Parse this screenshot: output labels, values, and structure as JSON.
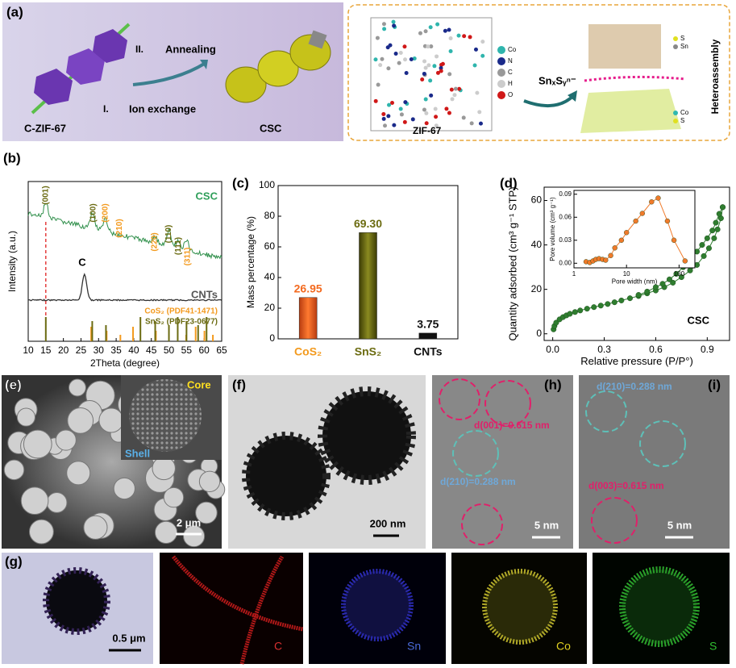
{
  "figure": {
    "a": {
      "label": "(a)",
      "step2": "II.",
      "anneal": "Annealing",
      "step1": "I.",
      "ion": "Ion exchange",
      "left": "C-ZIF-67",
      "right": "CSC",
      "zif": "ZIF-67",
      "atoms": [
        "Co",
        "N",
        "C",
        "H",
        "O"
      ],
      "reagent": "SnₓSᵧⁿ⁻",
      "side": "Heteroassembly",
      "top_atoms": [
        "S",
        "Sn"
      ],
      "bottom_atoms": [
        "Co",
        "S"
      ]
    },
    "e": {
      "label": "(e)",
      "core": "Core",
      "shell": "Shell",
      "scale": "2 μm"
    },
    "f": {
      "label": "(f)",
      "scale": "200 nm"
    },
    "h": {
      "label": "(h)",
      "d1": "d(001)=0.615 nm",
      "d2": "d(210)=0.288 nm",
      "scale": "5 nm"
    },
    "i": {
      "label": "(i)",
      "d1": "d(210)=0.288 nm",
      "d2": "d(003)=0.615 nm",
      "scale": "5 nm"
    },
    "g": {
      "label": "(g)",
      "scale": "0.5 μm",
      "maps": [
        "C",
        "Sn",
        "Co",
        "S"
      ]
    }
  },
  "chart_data": [
    {
      "type": "xrd",
      "label": "(b)",
      "xlabel": "2Theta (degree)",
      "ylabel": "Intensity (a.u.)",
      "xlim": [
        10,
        65
      ],
      "xticks": [
        10,
        15,
        20,
        25,
        30,
        35,
        40,
        45,
        50,
        55,
        60,
        65
      ],
      "curves": [
        "CSC",
        "C",
        "CNTs"
      ],
      "peaks": [
        "(001)",
        "(100)",
        "(200)",
        "(210)",
        "(220)",
        "(110)",
        "(111)",
        "(311)"
      ],
      "series": [
        {
          "name": "CoS₂ (PDF41-1471)",
          "color": "#f39a1e",
          "x": [
            27.9,
            32.3,
            36.2,
            39.8,
            46.3,
            54.9,
            57.6,
            60.1,
            62.5
          ]
        },
        {
          "name": "SnS₂ (PDF23-0677)",
          "color": "#6b6b12",
          "x": [
            15.0,
            28.2,
            32.1,
            41.9,
            46.1,
            50.0,
            52.5,
            55.0,
            58.3,
            60.7
          ]
        }
      ]
    },
    {
      "type": "bar",
      "label": "(c)",
      "ylabel": "Mass percentage (%)",
      "categories": [
        "CoS₂",
        "SnS₂",
        "CNTs"
      ],
      "values": [
        26.95,
        69.3,
        3.75
      ],
      "value_labels": [
        "26.95",
        "69.30",
        "3.75"
      ],
      "colors": [
        "#f36a1f",
        "#6b6b10",
        "#111111"
      ],
      "ylim": [
        0,
        100
      ],
      "yticks": [
        0,
        20,
        40,
        60,
        80,
        100
      ]
    },
    {
      "type": "scatter",
      "label": "(d)",
      "xlabel": "Relative pressure (P/P°)",
      "ylabel": "Quantity adsorbed (cm³ g⁻¹ STP)",
      "annotation": "CSC",
      "xlim": [
        -0.05,
        1.03
      ],
      "ylim": [
        -3,
        66
      ],
      "xticks": [
        {
          "value": 0,
          "label": "0.0"
        },
        0.3,
        0.6,
        0.9
      ],
      "yticks": [
        0,
        20,
        40,
        60
      ],
      "series": [
        {
          "color": "#2f7d2f",
          "x": [
            0.005,
            0.01,
            0.02,
            0.04,
            0.06,
            0.08,
            0.1,
            0.13,
            0.16,
            0.2,
            0.24,
            0.28,
            0.32,
            0.36,
            0.4,
            0.45,
            0.5,
            0.55,
            0.6,
            0.65,
            0.7,
            0.75,
            0.8,
            0.84,
            0.88,
            0.91,
            0.94,
            0.96,
            0.98,
            0.99
          ],
          "values": [
            2,
            3.5,
            5,
            6.5,
            7.5,
            8.3,
            9,
            9.8,
            10.5,
            11.3,
            12,
            12.7,
            13.4,
            14.2,
            15,
            16,
            17,
            18.2,
            19.5,
            21,
            23,
            25.5,
            28.5,
            31,
            35,
            38.5,
            43,
            47,
            52,
            57
          ]
        },
        {
          "color": "#2f7d2f",
          "x": [
            0.99,
            0.97,
            0.95,
            0.93,
            0.9,
            0.87,
            0.84,
            0.8,
            0.76,
            0.72,
            0.68,
            0.64,
            0.6,
            0.55,
            0.5
          ],
          "values": [
            57,
            54,
            50,
            46.5,
            43,
            40,
            37,
            33.5,
            30,
            27,
            24.5,
            22.5,
            21,
            19,
            17.5
          ]
        }
      ]
    },
    {
      "type": "scatter",
      "xlabel": "Pore width (nm)",
      "ylabel": "Pore volume (cm³ g⁻¹)",
      "xscale": "log",
      "xlim": [
        1,
        200
      ],
      "ylim": [
        -0.006,
        0.095
      ],
      "xticks": [
        1,
        10,
        100
      ],
      "yticks": [
        {
          "value": 0,
          "label": "0.00"
        },
        {
          "value": 0.03,
          "label": "0.03"
        },
        {
          "value": 0.06,
          "label": "0.06"
        },
        {
          "value": 0.09,
          "label": "0.09"
        }
      ],
      "series": [
        {
          "color": "#f07a2a",
          "x": [
            1.7,
            2,
            2.3,
            2.6,
            3,
            3.5,
            4,
            5,
            6,
            8,
            10,
            15,
            20,
            30,
            40,
            60,
            80,
            130
          ],
          "values": [
            0.002,
            0.001,
            0.003,
            0.005,
            0.006,
            0.005,
            0.004,
            0.01,
            0.02,
            0.03,
            0.04,
            0.055,
            0.065,
            0.08,
            0.085,
            0.055,
            0.03,
            0.003
          ]
        }
      ]
    }
  ]
}
